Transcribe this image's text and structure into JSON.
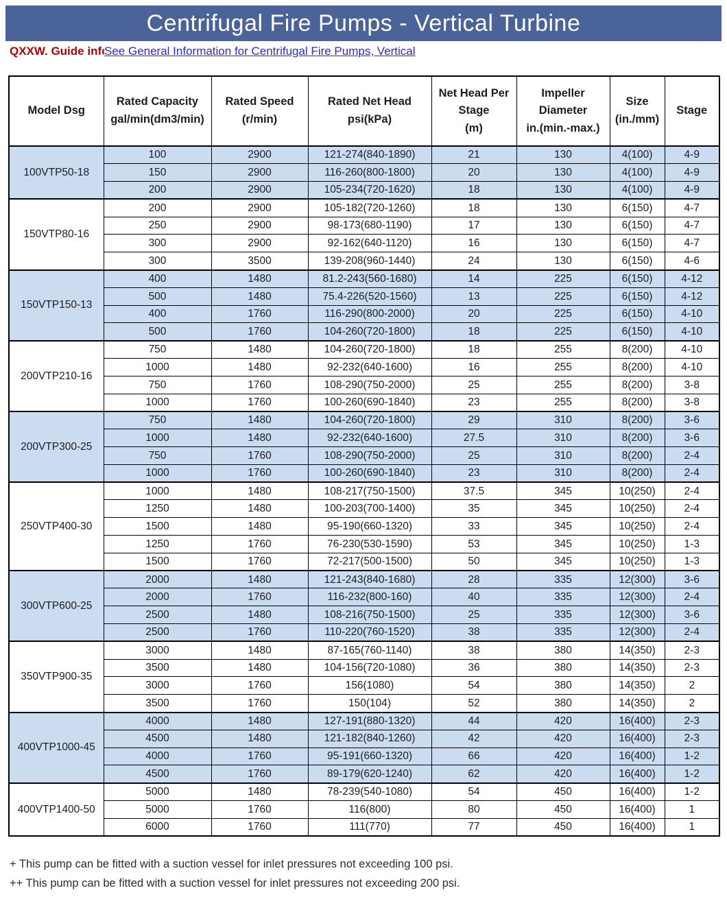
{
  "banner": {
    "title": "Centrifugal Fire Pumps - Vertical Turbine",
    "bg_color": "#4a6398",
    "text_color": "#ffffff"
  },
  "guide": {
    "label": "QXXW. Guide info",
    "label_color": "#b30000",
    "link_text": "See General Information for Centrifugal Fire Pumps, Vertical",
    "link_color": "#2a2ad2"
  },
  "table": {
    "shaded_row_color": "#cbdcf0",
    "columns": [
      "Model Dsg",
      "Rated Capacity\ngal/min(dm3/min)",
      "Rated Speed\n(r/min)",
      "Rated Net Head\npsi(kPa)",
      "Net Head Per\nStage\n(m)",
      "Impeller\nDiameter\nin.(min.-max.)",
      "Size\n(in./mm)",
      "Stage"
    ],
    "groups": [
      {
        "model": "100VTP50-18",
        "shaded": true,
        "rows": [
          [
            "100",
            "2900",
            "121-274(840-1890)",
            "21",
            "130",
            "4(100)",
            "4-9"
          ],
          [
            "150",
            "2900",
            "116-260(800-1800)",
            "20",
            "130",
            "4(100)",
            "4-9"
          ],
          [
            "200",
            "2900",
            "105-234(720-1620)",
            "18",
            "130",
            "4(100)",
            "4-9"
          ]
        ]
      },
      {
        "model": "150VTP80-16",
        "shaded": false,
        "rows": [
          [
            "200",
            "2900",
            "105-182(720-1260)",
            "18",
            "130",
            "6(150)",
            "4-7"
          ],
          [
            "250",
            "2900",
            "98-173(680-1190)",
            "17",
            "130",
            "6(150)",
            "4-7"
          ],
          [
            "300",
            "2900",
            "92-162(640-1120)",
            "16",
            "130",
            "6(150)",
            "4-7"
          ],
          [
            "300",
            "3500",
            "139-208(960-1440)",
            "24",
            "130",
            "6(150)",
            "4-6"
          ]
        ]
      },
      {
        "model": "150VTP150-13",
        "shaded": true,
        "rows": [
          [
            "400",
            "1480",
            "81.2-243(560-1680)",
            "14",
            "225",
            "6(150)",
            "4-12"
          ],
          [
            "500",
            "1480",
            "75.4-226(520-1560)",
            "13",
            "225",
            "6(150)",
            "4-12"
          ],
          [
            "400",
            "1760",
            "116-290(800-2000)",
            "20",
            "225",
            "6(150)",
            "4-10"
          ],
          [
            "500",
            "1760",
            "104-260(720-1800)",
            "18",
            "225",
            "6(150)",
            "4-10"
          ]
        ]
      },
      {
        "model": "200VTP210-16",
        "shaded": false,
        "rows": [
          [
            "750",
            "1480",
            "104-260(720-1800)",
            "18",
            "255",
            "8(200)",
            "4-10"
          ],
          [
            "1000",
            "1480",
            "92-232(640-1600)",
            "16",
            "255",
            "8(200)",
            "4-10"
          ],
          [
            "750",
            "1760",
            "108-290(750-2000)",
            "25",
            "255",
            "8(200)",
            "3-8"
          ],
          [
            "1000",
            "1760",
            "100-260(690-1840)",
            "23",
            "255",
            "8(200)",
            "3-8"
          ]
        ]
      },
      {
        "model": "200VTP300-25",
        "shaded": true,
        "rows": [
          [
            "750",
            "1480",
            "104-260(720-1800)",
            "29",
            "310",
            "8(200)",
            "3-6"
          ],
          [
            "1000",
            "1480",
            "92-232(640-1600)",
            "27.5",
            "310",
            "8(200)",
            "3-6"
          ],
          [
            "750",
            "1760",
            "108-290(750-2000)",
            "25",
            "310",
            "8(200)",
            "2-4"
          ],
          [
            "1000",
            "1760",
            "100-260(690-1840)",
            "23",
            "310",
            "8(200)",
            "2-4"
          ]
        ]
      },
      {
        "model": "250VTP400-30",
        "shaded": false,
        "rows": [
          [
            "1000",
            "1480",
            "108-217(750-1500)",
            "37.5",
            "345",
            "10(250)",
            "2-4"
          ],
          [
            "1250",
            "1480",
            "100-203(700-1400)",
            "35",
            "345",
            "10(250)",
            "2-4"
          ],
          [
            "1500",
            "1480",
            "95-190(660-1320)",
            "33",
            "345",
            "10(250)",
            "2-4"
          ],
          [
            "1250",
            "1760",
            "76-230(530-1590)",
            "53",
            "345",
            "10(250)",
            "1-3"
          ],
          [
            "1500",
            "1760",
            "72-217(500-1500)",
            "50",
            "345",
            "10(250)",
            "1-3"
          ]
        ]
      },
      {
        "model": "300VTP600-25",
        "shaded": true,
        "rows": [
          [
            "2000",
            "1480",
            "121-243(840-1680)",
            "28",
            "335",
            "12(300)",
            "3-6"
          ],
          [
            "2000",
            "1760",
            "116-232(800-160)",
            "40",
            "335",
            "12(300)",
            "2-4"
          ],
          [
            "2500",
            "1480",
            "108-216(750-1500)",
            "25",
            "335",
            "12(300)",
            "3-6"
          ],
          [
            "2500",
            "1760",
            "110-220(760-1520)",
            "38",
            "335",
            "12(300)",
            "2-4"
          ]
        ]
      },
      {
        "model": "350VTP900-35",
        "shaded": false,
        "rows": [
          [
            "3000",
            "1480",
            "87-165(760-1140)",
            "38",
            "380",
            "14(350)",
            "2-3"
          ],
          [
            "3500",
            "1480",
            "104-156(720-1080)",
            "36",
            "380",
            "14(350)",
            "2-3"
          ],
          [
            "3000",
            "1760",
            "156(1080)",
            "54",
            "380",
            "14(350)",
            "2"
          ],
          [
            "3500",
            "1760",
            "150(104)",
            "52",
            "380",
            "14(350)",
            "2"
          ]
        ]
      },
      {
        "model": "400VTP1000-45",
        "shaded": true,
        "rows": [
          [
            "4000",
            "1480",
            "127-191(880-1320)",
            "44",
            "420",
            "16(400)",
            "2-3"
          ],
          [
            "4500",
            "1480",
            "121-182(840-1260)",
            "42",
            "420",
            "16(400)",
            "2-3"
          ],
          [
            "4000",
            "1760",
            "95-191(660-1320)",
            "66",
            "420",
            "16(400)",
            "1-2"
          ],
          [
            "4500",
            "1760",
            "89-179(620-1240)",
            "62",
            "420",
            "16(400)",
            "1-2"
          ]
        ]
      },
      {
        "model": "400VTP1400-50",
        "shaded": false,
        "rows": [
          [
            "5000",
            "1480",
            "78-239(540-1080)",
            "54",
            "450",
            "16(400)",
            "1-2"
          ],
          [
            "5000",
            "1760",
            "116(800)",
            "80",
            "450",
            "16(400)",
            "1"
          ],
          [
            "6000",
            "1760",
            "111(770)",
            "77",
            "450",
            "16(400)",
            "1"
          ]
        ]
      }
    ]
  },
  "notes": [
    "+ This pump can be fitted with a suction vessel for inlet pressures not exceeding 100 psi.",
    "++ This pump can be fitted with a suction vessel for inlet pressures not exceeding 200 psi."
  ]
}
